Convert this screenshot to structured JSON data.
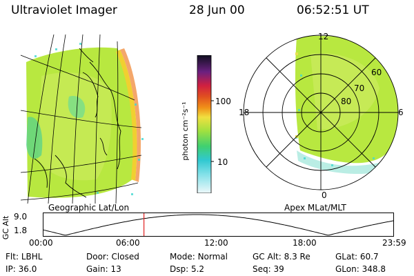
{
  "header": {
    "instrument": "Ultraviolet Imager",
    "date": "28 Jun 00",
    "time": "06:52:51 UT"
  },
  "left_panel": {
    "label": "Geographic Lat/Lon"
  },
  "right_panel": {
    "label": "Apex  MLat/MLT",
    "mlt_labels": {
      "top": "12",
      "left": "18",
      "right": "6",
      "bottom": "0"
    },
    "lat_labels": [
      "60",
      "70",
      "80"
    ]
  },
  "colorbar": {
    "title": "photon cm⁻²s⁻¹",
    "ticks": [
      "100",
      "10"
    ]
  },
  "altitude_plot": {
    "ylabel": "GC Alt",
    "y_ticks": [
      "9.0",
      "1.8"
    ],
    "x_ticks": [
      "00:00",
      "06:00",
      "12:00",
      "18:00",
      "23:59"
    ],
    "marker_time_hours": 6.88
  },
  "info": {
    "row1": [
      {
        "key": "Flt:",
        "value": "LBHL"
      },
      {
        "key": "Door:",
        "value": "Closed"
      },
      {
        "key": "Mode:",
        "value": "Normal"
      },
      {
        "key": "GC Alt:",
        "value": "8.3 Re"
      },
      {
        "key": "GLat:",
        "value": "60.7"
      }
    ],
    "row2": [
      {
        "key": "IP:",
        "value": "36.0"
      },
      {
        "key": "Gain:",
        "value": "13"
      },
      {
        "key": "Dsp:",
        "value": "5.2"
      },
      {
        "key": "Seq:",
        "value": "39"
      },
      {
        "key": "GLon:",
        "value": "348.8"
      }
    ]
  },
  "colors": {
    "aurora_main": "#b8e840",
    "aurora_edge": "#f0d030",
    "aurora_cyan": "#40d8d0",
    "marker": "#e02020"
  }
}
